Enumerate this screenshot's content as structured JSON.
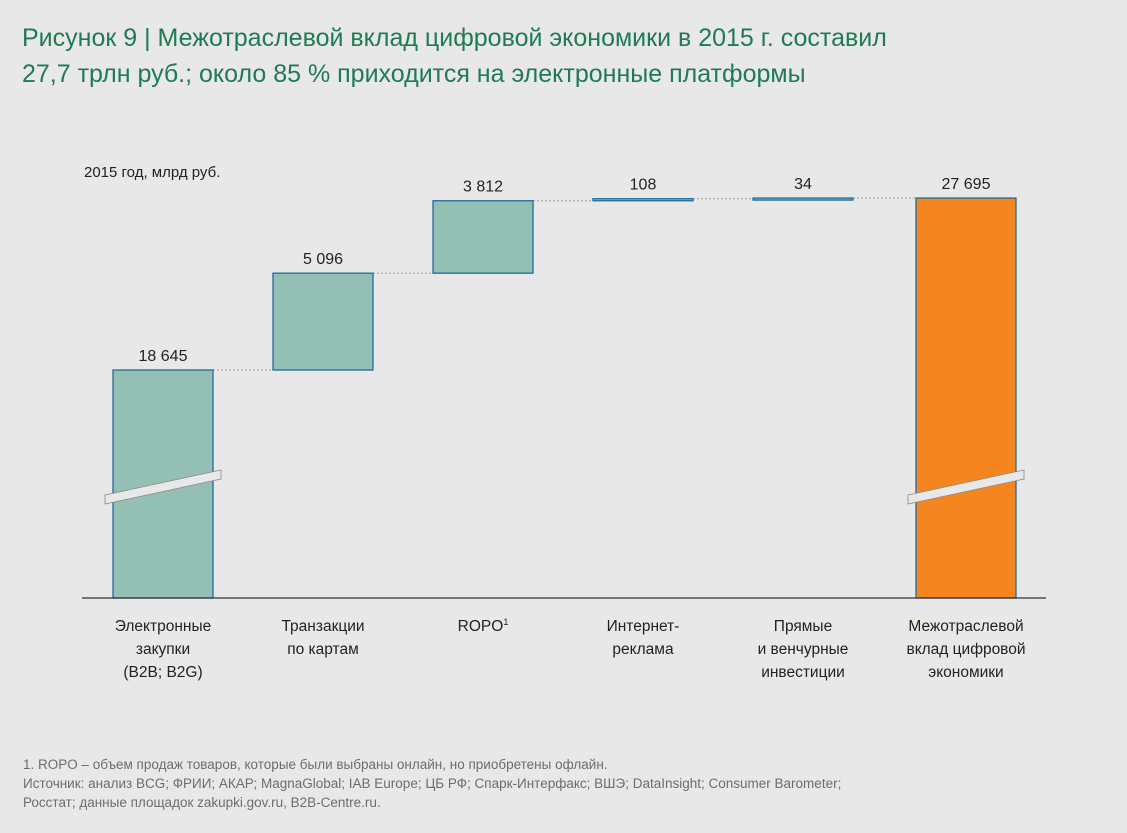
{
  "figure": {
    "title_line1": "Рисунок 9 | Межотраслевой вклад цифровой экономики в 2015 г. составил",
    "title_line2": "27,7 трлн руб.; около 85 % приходится на электронные платформы",
    "units_label": "2015 год, млрд руб."
  },
  "chart_data": {
    "type": "waterfall",
    "y_unit": "млрд руб.",
    "categories": [
      "Электронные закупки (B2B; B2G)",
      "Транзакции по картам",
      "ROPO",
      "Интернет-реклама",
      "Прямые и венчурные инвестиции",
      "Межотраслевой вклад цифровой экономики"
    ],
    "values": [
      18645,
      5096,
      3812,
      108,
      34,
      27695
    ],
    "value_labels": [
      "18 645",
      "5 096",
      "3 812",
      "108",
      "34",
      "27 695"
    ],
    "kinds": [
      "increment",
      "increment",
      "increment",
      "increment",
      "increment",
      "total"
    ],
    "axis_break": true,
    "colors": {
      "increment_fill": "#93bfb4",
      "increment_stroke": "#1f6b9a",
      "total_fill": "#f5861f",
      "total_stroke": "#1f6b9a",
      "connector": "#9a9a9a",
      "baseline": "#333333",
      "break_band": "#e8e8e9"
    }
  },
  "category_lines": [
    [
      "Электронные",
      "закупки",
      "(B2B; B2G)"
    ],
    [
      "Транзакции",
      "по картам"
    ],
    [
      "ROPO"
    ],
    [
      "Интернет-",
      "реклама"
    ],
    [
      "Прямые",
      "и венчурные",
      "инвестиции"
    ],
    [
      "Межотраслевой",
      "вклад цифровой",
      "экономики"
    ]
  ],
  "ropo_footnote_mark": "1",
  "footer": {
    "note": "1. ROPO – объем продаж товаров, которые были выбраны онлайн, но приобретены офлайн.",
    "source_line1": "Источник: анализ BCG; ФРИИ; АКАР; MagnaGlobal; IAB Europe; ЦБ РФ; Спарк-Интерфакс; ВШЭ; DataInsight; Consumer Barometer;",
    "source_line2": "Росстат; данные площадок zakupki.gov.ru, B2B-Centre.ru."
  }
}
